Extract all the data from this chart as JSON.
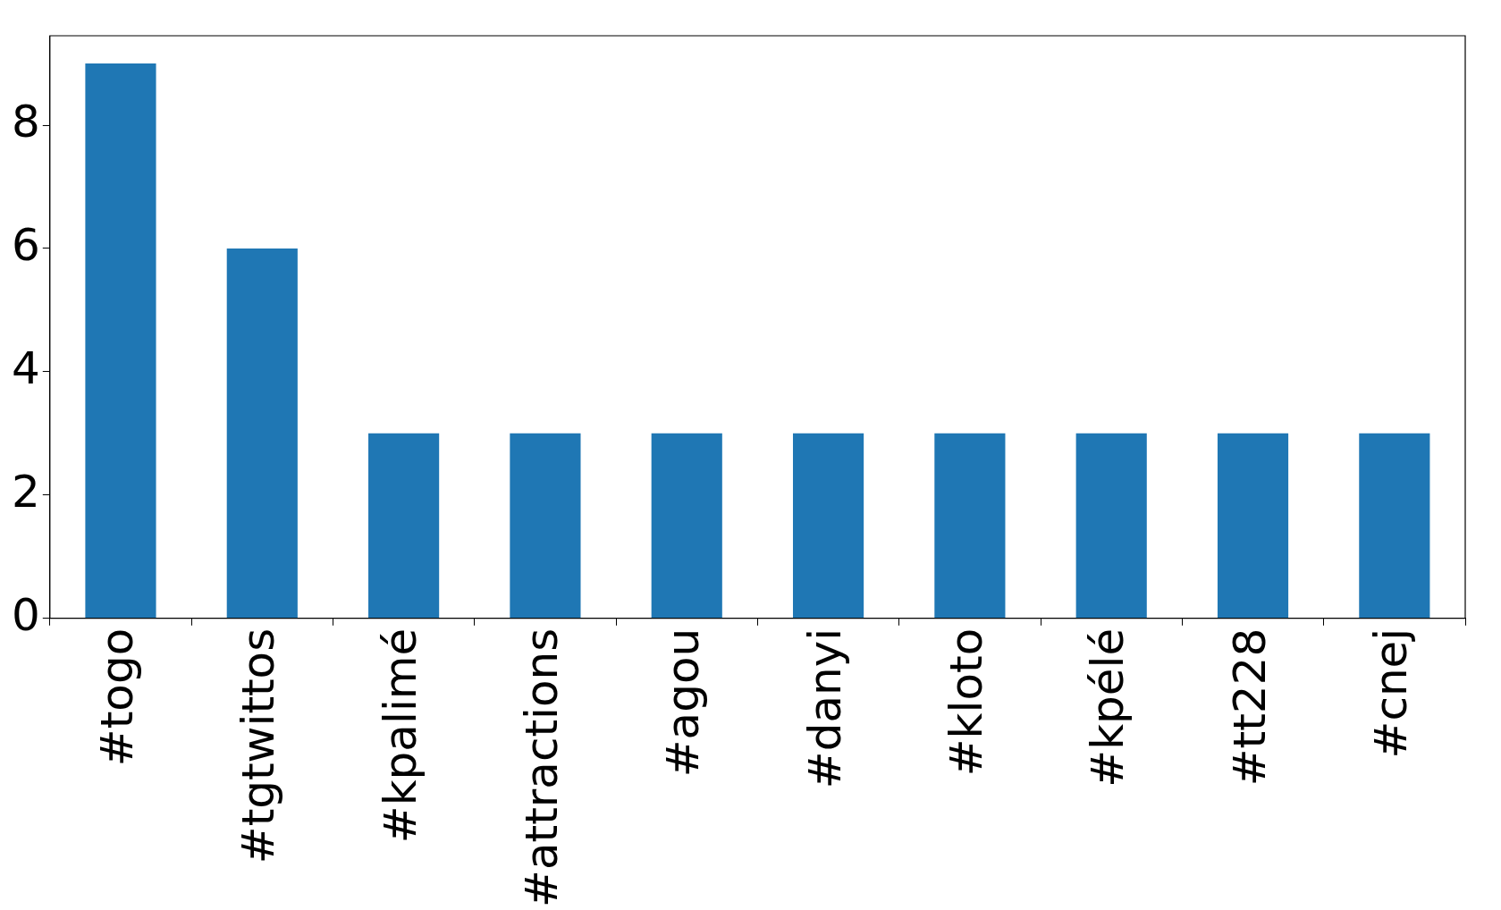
{
  "chart_data": {
    "type": "bar",
    "categories": [
      "#togo",
      "#tgtwittos",
      "#kpalimé",
      "#attractions",
      "#agou",
      "#danyi",
      "#kloto",
      "#kpélé",
      "#tt228",
      "#cnej"
    ],
    "values": [
      9,
      6,
      3,
      3,
      3,
      3,
      3,
      3,
      3,
      3
    ],
    "color": "#1f77b4",
    "ylim": [
      0,
      9.45
    ],
    "yticks": [
      0,
      2,
      4,
      6,
      8
    ],
    "grid": false,
    "legend": false
  }
}
